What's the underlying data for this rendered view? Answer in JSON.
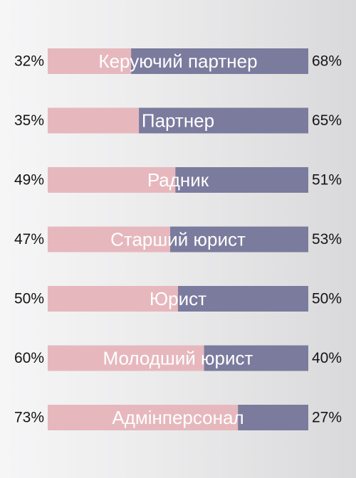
{
  "chart_data": {
    "type": "bar",
    "stacked": true,
    "orientation": "horizontal",
    "categories": [
      "Керуючий партнер",
      "Партнер",
      "Радник",
      "Старший юрист",
      "Юрист",
      "Молодший юрист",
      "Адмінперсонал"
    ],
    "series": [
      {
        "values": [
          32,
          35,
          49,
          47,
          50,
          60,
          73
        ],
        "color": "#e6b8bd"
      },
      {
        "values": [
          68,
          65,
          51,
          53,
          50,
          40,
          27
        ],
        "color": "#7b7b9e"
      }
    ],
    "left_labels": [
      "32%",
      "35%",
      "49%",
      "47%",
      "50%",
      "60%",
      "73%"
    ],
    "right_labels": [
      "68%",
      "65%",
      "51%",
      "53%",
      "50%",
      "40%",
      "27%"
    ],
    "xlim": [
      0,
      100
    ],
    "grid": false,
    "legend": "none"
  }
}
